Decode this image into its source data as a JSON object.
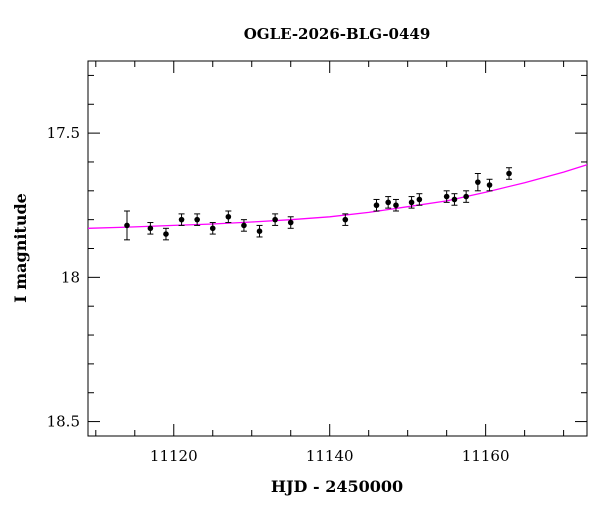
{
  "chart_data": {
    "type": "scatter",
    "title": "OGLE-2026-BLG-0449",
    "xlabel": "HJD - 2450000",
    "ylabel": "I magnitude",
    "xlim": [
      11109,
      11173
    ],
    "ylim": [
      18.55,
      17.25
    ],
    "y_inverted": true,
    "x_ticks": [
      11120,
      11140,
      11160
    ],
    "y_ticks": [
      17.5,
      18,
      18.5
    ],
    "x_tick_labels": [
      "11120",
      "11140",
      "11160"
    ],
    "y_tick_labels": [
      "17.5",
      "18",
      "18.5"
    ],
    "x_minor_step": 5,
    "y_minor_step": 0.1,
    "grid": false,
    "colors": {
      "points": "#000000",
      "model": "#ff00ff"
    },
    "series": [
      {
        "kind": "points",
        "x": [
          11114,
          11117,
          11119,
          11121,
          11123,
          11125,
          11127,
          11129,
          11131,
          11133,
          11135,
          11142,
          11146,
          11147.5,
          11148.5,
          11150.5,
          11151.5,
          11155,
          11156,
          11157.5,
          11159,
          11160.5,
          11163
        ],
        "y": [
          17.82,
          17.83,
          17.85,
          17.8,
          17.8,
          17.83,
          17.79,
          17.82,
          17.84,
          17.8,
          17.81,
          17.8,
          17.75,
          17.74,
          17.75,
          17.74,
          17.73,
          17.72,
          17.73,
          17.72,
          17.67,
          17.68,
          17.64
        ],
        "yerr": [
          0.05,
          0.02,
          0.02,
          0.02,
          0.02,
          0.02,
          0.02,
          0.02,
          0.02,
          0.02,
          0.02,
          0.02,
          0.02,
          0.02,
          0.02,
          0.02,
          0.02,
          0.02,
          0.02,
          0.02,
          0.03,
          0.02,
          0.02
        ]
      },
      {
        "kind": "model",
        "x": [
          11109,
          11115,
          11120,
          11125,
          11130,
          11135,
          11140,
          11145,
          11150,
          11155,
          11160,
          11165,
          11170,
          11173
        ],
        "y": [
          17.83,
          17.825,
          17.82,
          17.815,
          17.808,
          17.8,
          17.79,
          17.775,
          17.755,
          17.735,
          17.705,
          17.672,
          17.635,
          17.61
        ]
      }
    ]
  }
}
